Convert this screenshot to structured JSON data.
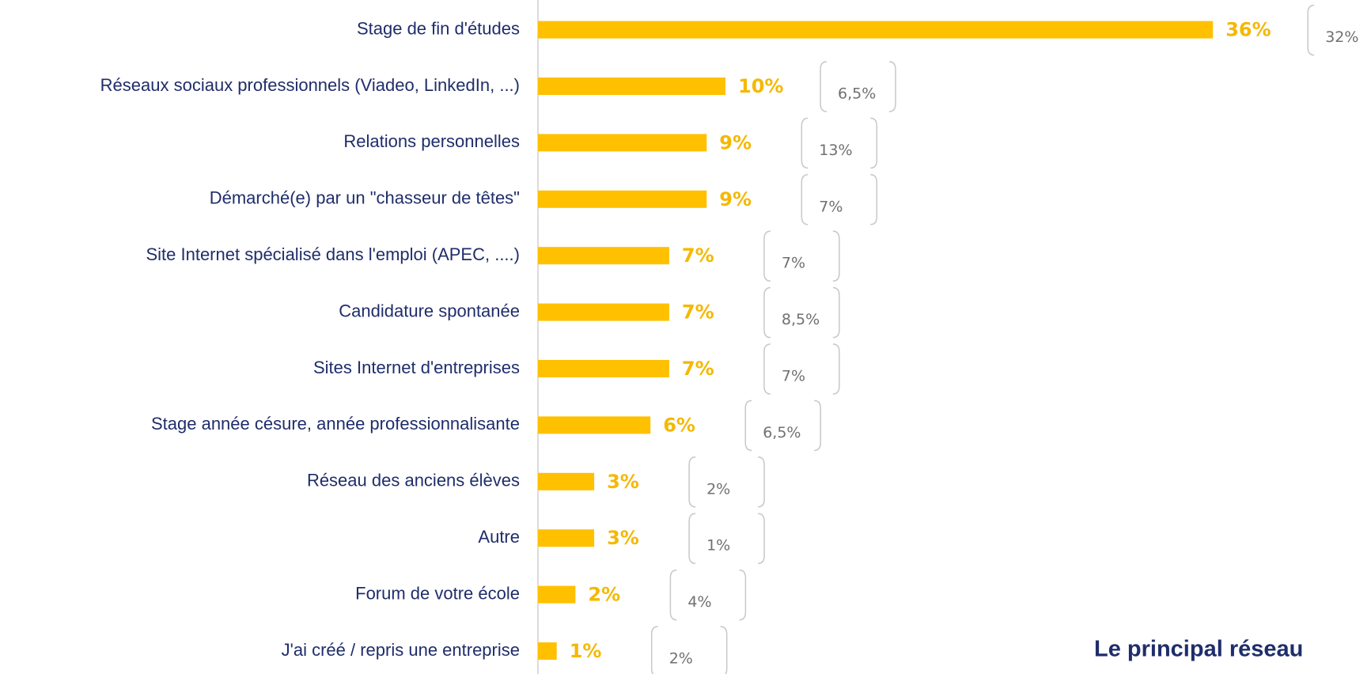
{
  "chart_data": {
    "type": "bar",
    "orientation": "horizontal",
    "categories": [
      "Stage de fin d'études",
      "Réseaux sociaux professionnels (Viadeo, LinkedIn, ...)",
      "Relations personnelles",
      "Démarché(e) par un \"chasseur de têtes\"",
      "Site Internet spécialisé dans l'emploi (APEC, ....)",
      "Candidature spontanée",
      "Sites Internet d'entreprises",
      "Stage année césure, année professionnalisante",
      "Réseau des anciens élèves",
      "Autre",
      "Forum de votre école",
      "J'ai créé / repris une entreprise"
    ],
    "values": [
      36,
      10,
      9,
      9,
      7,
      7,
      7,
      6,
      3,
      3,
      2,
      1
    ],
    "value_labels": [
      "36%",
      "10%",
      "9%",
      "9%",
      "7%",
      "7%",
      "7%",
      "6%",
      "3%",
      "3%",
      "2%",
      "1%"
    ],
    "color": "#ffc000",
    "comparison_values": [
      32,
      6.5,
      13,
      7,
      7,
      8.5,
      7,
      6.5,
      2,
      1,
      4,
      2
    ],
    "comparison_labels": [
      "32%",
      "6,5%",
      "13%",
      "7%",
      "7%",
      "8,5%",
      "7%",
      "6,5%",
      "2%",
      "1%",
      "4%",
      "2%"
    ],
    "annotation": "Le principal réseau"
  }
}
